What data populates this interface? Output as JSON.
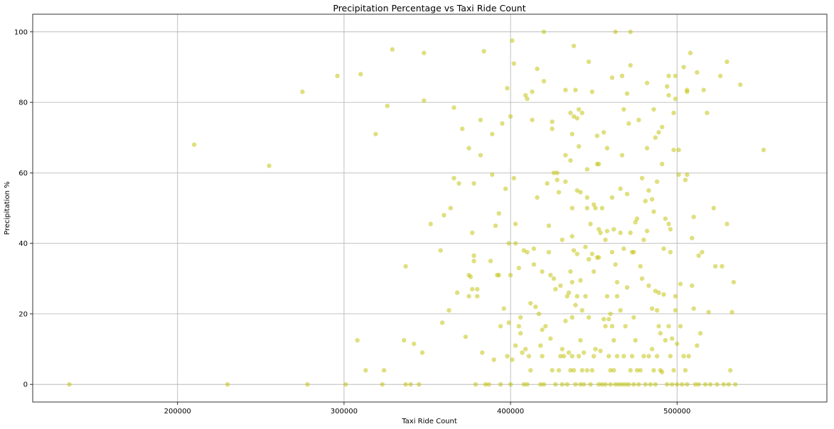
{
  "chart_data": {
    "type": "scatter",
    "title": "Precipitation Percentage vs Taxi Ride Count",
    "xlabel": "Taxi Ride Count",
    "ylabel": "Precipitation %",
    "xlim": [
      113000,
      590000
    ],
    "ylim": [
      -5,
      105
    ],
    "xticks": [
      200000,
      300000,
      400000,
      500000
    ],
    "yticks": [
      0,
      20,
      40,
      60,
      80,
      100
    ],
    "grid": true,
    "marker_color": "#bfbf00",
    "marker_opacity": 0.5,
    "points": [
      [
        135000,
        0
      ],
      [
        210000,
        68
      ],
      [
        230000,
        0
      ],
      [
        255000,
        62
      ],
      [
        275000,
        83
      ],
      [
        278000,
        0
      ],
      [
        296000,
        87.5
      ],
      [
        301000,
        0
      ],
      [
        308000,
        12.5
      ],
      [
        310000,
        88
      ],
      [
        313000,
        4
      ],
      [
        319000,
        71
      ],
      [
        323000,
        0
      ],
      [
        324000,
        4
      ],
      [
        326000,
        79
      ],
      [
        329000,
        95
      ],
      [
        336000,
        12.5
      ],
      [
        337000,
        33.5
      ],
      [
        337000,
        0
      ],
      [
        340000,
        0
      ],
      [
        342000,
        11.5
      ],
      [
        345000,
        0
      ],
      [
        347000,
        9
      ],
      [
        348000,
        80.5
      ],
      [
        348000,
        94
      ],
      [
        352000,
        45.5
      ],
      [
        358000,
        38
      ],
      [
        359000,
        17.5
      ],
      [
        360000,
        48
      ],
      [
        363000,
        21
      ],
      [
        364000,
        50
      ],
      [
        366000,
        58.5
      ],
      [
        366000,
        78.5
      ],
      [
        368000,
        26
      ],
      [
        369000,
        57
      ],
      [
        371000,
        72.5
      ],
      [
        373000,
        13.5
      ],
      [
        375000,
        31
      ],
      [
        375000,
        67
      ],
      [
        375000,
        25
      ],
      [
        376000,
        30.5
      ],
      [
        377000,
        27
      ],
      [
        377000,
        43
      ],
      [
        378000,
        57
      ],
      [
        378000,
        35
      ],
      [
        378000,
        36.5
      ],
      [
        379000,
        0
      ],
      [
        380000,
        25
      ],
      [
        380000,
        27
      ],
      [
        382000,
        65
      ],
      [
        382000,
        75
      ],
      [
        383000,
        9
      ],
      [
        384000,
        94.5
      ],
      [
        385000,
        0
      ],
      [
        387000,
        0
      ],
      [
        388000,
        35
      ],
      [
        389000,
        71
      ],
      [
        389000,
        59.5
      ],
      [
        390000,
        7
      ],
      [
        391000,
        45
      ],
      [
        392000,
        31
      ],
      [
        393000,
        31
      ],
      [
        393000,
        48.5
      ],
      [
        394000,
        0
      ],
      [
        394000,
        16.5
      ],
      [
        395000,
        74
      ],
      [
        396000,
        21.5
      ],
      [
        397000,
        55.5
      ],
      [
        398000,
        84
      ],
      [
        398000,
        8
      ],
      [
        399000,
        17.5
      ],
      [
        399000,
        40
      ],
      [
        400000,
        76
      ],
      [
        400000,
        31
      ],
      [
        400000,
        0
      ],
      [
        401000,
        97.5
      ],
      [
        401000,
        7
      ],
      [
        402000,
        91
      ],
      [
        402000,
        58.5
      ],
      [
        403000,
        45.5
      ],
      [
        403000,
        11
      ],
      [
        403000,
        40
      ],
      [
        405000,
        33
      ],
      [
        405000,
        16.5
      ],
      [
        406000,
        14.5
      ],
      [
        406000,
        19
      ],
      [
        407000,
        9
      ],
      [
        408000,
        0
      ],
      [
        408000,
        38
      ],
      [
        409000,
        82
      ],
      [
        409000,
        10
      ],
      [
        410000,
        37.5
      ],
      [
        410000,
        81
      ],
      [
        410000,
        0
      ],
      [
        411000,
        8
      ],
      [
        412000,
        23
      ],
      [
        412000,
        4
      ],
      [
        413000,
        75
      ],
      [
        413000,
        83
      ],
      [
        414000,
        34
      ],
      [
        414000,
        38.5
      ],
      [
        415000,
        22
      ],
      [
        416000,
        53
      ],
      [
        416000,
        89.5
      ],
      [
        417000,
        20
      ],
      [
        418000,
        11
      ],
      [
        418000,
        0
      ],
      [
        419000,
        32
      ],
      [
        419000,
        15.5
      ],
      [
        419000,
        8
      ],
      [
        420000,
        100
      ],
      [
        420000,
        86
      ],
      [
        420000,
        0
      ],
      [
        421000,
        16.5
      ],
      [
        422000,
        57
      ],
      [
        423000,
        37.5
      ],
      [
        423000,
        45
      ],
      [
        424000,
        31
      ],
      [
        424000,
        13
      ],
      [
        425000,
        72.5
      ],
      [
        425000,
        74.5
      ],
      [
        425000,
        4
      ],
      [
        426000,
        60
      ],
      [
        426000,
        30
      ],
      [
        427000,
        0
      ],
      [
        427000,
        27
      ],
      [
        428000,
        58
      ],
      [
        428000,
        60
      ],
      [
        429000,
        54.5
      ],
      [
        429000,
        4
      ],
      [
        430000,
        28
      ],
      [
        430000,
        8
      ],
      [
        431000,
        41
      ],
      [
        431000,
        0
      ],
      [
        431000,
        10
      ],
      [
        432000,
        8
      ],
      [
        433000,
        83.5
      ],
      [
        433000,
        57.5
      ],
      [
        433000,
        18
      ],
      [
        433000,
        65
      ],
      [
        434000,
        25
      ],
      [
        434000,
        0
      ],
      [
        435000,
        26
      ],
      [
        435000,
        9
      ],
      [
        436000,
        77
      ],
      [
        436000,
        32
      ],
      [
        436000,
        63.5
      ],
      [
        436000,
        4
      ],
      [
        437000,
        71
      ],
      [
        437000,
        29
      ],
      [
        437000,
        19
      ],
      [
        437000,
        8
      ],
      [
        437000,
        50
      ],
      [
        437000,
        42
      ],
      [
        438000,
        96
      ],
      [
        438000,
        76
      ],
      [
        438000,
        38
      ],
      [
        438000,
        4
      ],
      [
        439000,
        83.5
      ],
      [
        439000,
        22.5
      ],
      [
        439000,
        0
      ],
      [
        440000,
        55
      ],
      [
        440000,
        75.5
      ],
      [
        440000,
        37
      ],
      [
        440000,
        25
      ],
      [
        441000,
        78
      ],
      [
        441000,
        67.5
      ],
      [
        441000,
        8
      ],
      [
        442000,
        54.5
      ],
      [
        442000,
        29.5
      ],
      [
        442000,
        12.5
      ],
      [
        442000,
        0
      ],
      [
        443000,
        77
      ],
      [
        443000,
        21
      ],
      [
        443000,
        4
      ],
      [
        444000,
        9
      ],
      [
        444000,
        0
      ],
      [
        445000,
        39
      ],
      [
        445000,
        25
      ],
      [
        446000,
        53
      ],
      [
        446000,
        61
      ],
      [
        446000,
        4
      ],
      [
        446000,
        50
      ],
      [
        447000,
        35.5
      ],
      [
        447000,
        91.5
      ],
      [
        447000,
        19
      ],
      [
        448000,
        45.5
      ],
      [
        448000,
        0
      ],
      [
        449000,
        83
      ],
      [
        449000,
        37
      ],
      [
        449000,
        4
      ],
      [
        450000,
        32
      ],
      [
        450000,
        51
      ],
      [
        450000,
        8
      ],
      [
        451000,
        50
      ],
      [
        451000,
        10
      ],
      [
        452000,
        36
      ],
      [
        452000,
        62.5
      ],
      [
        452000,
        70.5
      ],
      [
        453000,
        44
      ],
      [
        453000,
        62.5
      ],
      [
        453000,
        36
      ],
      [
        453000,
        0
      ],
      [
        454000,
        43
      ],
      [
        454000,
        9.5
      ],
      [
        455000,
        0
      ],
      [
        455000,
        50
      ],
      [
        456000,
        71.5
      ],
      [
        456000,
        18.5
      ],
      [
        457000,
        41
      ],
      [
        457000,
        16.5
      ],
      [
        457000,
        0
      ],
      [
        458000,
        67
      ],
      [
        458000,
        43.5
      ],
      [
        458000,
        25
      ],
      [
        459000,
        18.5
      ],
      [
        459000,
        8
      ],
      [
        460000,
        20
      ],
      [
        460000,
        0
      ],
      [
        460000,
        4
      ],
      [
        461000,
        53
      ],
      [
        461000,
        87
      ],
      [
        461000,
        16.5
      ],
      [
        461000,
        37.5
      ],
      [
        462000,
        44
      ],
      [
        462000,
        12.5
      ],
      [
        462000,
        4
      ],
      [
        463000,
        100
      ],
      [
        463000,
        34
      ],
      [
        463000,
        0
      ],
      [
        464000,
        25
      ],
      [
        464000,
        29
      ],
      [
        464000,
        8
      ],
      [
        465000,
        0
      ],
      [
        466000,
        55.5
      ],
      [
        466000,
        21
      ],
      [
        466000,
        43
      ],
      [
        467000,
        65
      ],
      [
        467000,
        87.5
      ],
      [
        467000,
        0
      ],
      [
        468000,
        78
      ],
      [
        468000,
        38.5
      ],
      [
        468000,
        8
      ],
      [
        469000,
        16.5
      ],
      [
        469000,
        0
      ],
      [
        470000,
        54
      ],
      [
        470000,
        82.5
      ],
      [
        470000,
        27.5
      ],
      [
        471000,
        74
      ],
      [
        471000,
        0
      ],
      [
        472000,
        100
      ],
      [
        472000,
        90.5
      ],
      [
        472000,
        43
      ],
      [
        472000,
        4
      ],
      [
        473000,
        37.5
      ],
      [
        473000,
        8
      ],
      [
        474000,
        37.5
      ],
      [
        474000,
        19
      ],
      [
        474000,
        0
      ],
      [
        475000,
        46
      ],
      [
        475000,
        12.5
      ],
      [
        476000,
        4
      ],
      [
        476000,
        47
      ],
      [
        477000,
        75
      ],
      [
        477000,
        0
      ],
      [
        478000,
        33.5
      ],
      [
        478000,
        4
      ],
      [
        479000,
        58.5
      ],
      [
        479000,
        30
      ],
      [
        480000,
        8
      ],
      [
        480000,
        41
      ],
      [
        481000,
        52
      ],
      [
        481000,
        0
      ],
      [
        482000,
        85.5
      ],
      [
        482000,
        67
      ],
      [
        482000,
        43.5
      ],
      [
        483000,
        55
      ],
      [
        483000,
        28
      ],
      [
        483000,
        8
      ],
      [
        484000,
        0
      ],
      [
        485000,
        21.5
      ],
      [
        485000,
        10
      ],
      [
        485000,
        52.5
      ],
      [
        486000,
        49
      ],
      [
        486000,
        4
      ],
      [
        486000,
        78
      ],
      [
        487000,
        70
      ],
      [
        487000,
        26.5
      ],
      [
        487000,
        0
      ],
      [
        488000,
        57.5
      ],
      [
        488000,
        21
      ],
      [
        488000,
        8
      ],
      [
        489000,
        71.5
      ],
      [
        489000,
        26
      ],
      [
        489000,
        16.5
      ],
      [
        490000,
        4
      ],
      [
        490000,
        14.5
      ],
      [
        491000,
        73
      ],
      [
        491000,
        3.5
      ],
      [
        491000,
        62.5
      ],
      [
        492000,
        38.5
      ],
      [
        492000,
        25.5
      ],
      [
        493000,
        47
      ],
      [
        493000,
        12.5
      ],
      [
        494000,
        84.5
      ],
      [
        494000,
        0
      ],
      [
        495000,
        87.5
      ],
      [
        495000,
        82
      ],
      [
        495000,
        45.5
      ],
      [
        495000,
        16.5
      ],
      [
        496000,
        37.5
      ],
      [
        496000,
        44
      ],
      [
        496000,
        8
      ],
      [
        497000,
        13
      ],
      [
        497000,
        0
      ],
      [
        498000,
        77
      ],
      [
        498000,
        66.5
      ],
      [
        498000,
        4
      ],
      [
        499000,
        25
      ],
      [
        499000,
        87.5
      ],
      [
        499000,
        81
      ],
      [
        499000,
        21
      ],
      [
        500000,
        0
      ],
      [
        500000,
        11.5
      ],
      [
        501000,
        66.5
      ],
      [
        501000,
        59.5
      ],
      [
        502000,
        28.5
      ],
      [
        502000,
        16.5
      ],
      [
        503000,
        0
      ],
      [
        504000,
        8
      ],
      [
        504000,
        90
      ],
      [
        505000,
        58
      ],
      [
        505000,
        4
      ],
      [
        506000,
        83.5
      ],
      [
        506000,
        83
      ],
      [
        506000,
        59.5
      ],
      [
        506000,
        0
      ],
      [
        507000,
        8
      ],
      [
        508000,
        94
      ],
      [
        509000,
        28
      ],
      [
        509000,
        41.5
      ],
      [
        510000,
        47.5
      ],
      [
        510000,
        21.5
      ],
      [
        511000,
        0
      ],
      [
        512000,
        88.5
      ],
      [
        512000,
        11
      ],
      [
        513000,
        36.5
      ],
      [
        513000,
        0
      ],
      [
        514000,
        14.5
      ],
      [
        515000,
        37.5
      ],
      [
        516000,
        83.5
      ],
      [
        517000,
        0
      ],
      [
        518000,
        77
      ],
      [
        519000,
        20.5
      ],
      [
        520000,
        0
      ],
      [
        522000,
        50
      ],
      [
        523000,
        33.5
      ],
      [
        524000,
        0
      ],
      [
        526000,
        87.5
      ],
      [
        527000,
        33.5
      ],
      [
        528000,
        0
      ],
      [
        530000,
        45.5
      ],
      [
        530000,
        91.5
      ],
      [
        531000,
        0
      ],
      [
        532000,
        4
      ],
      [
        533000,
        20.5
      ],
      [
        534000,
        29
      ],
      [
        535000,
        0
      ],
      [
        538000,
        85
      ],
      [
        552000,
        66.5
      ]
    ]
  }
}
